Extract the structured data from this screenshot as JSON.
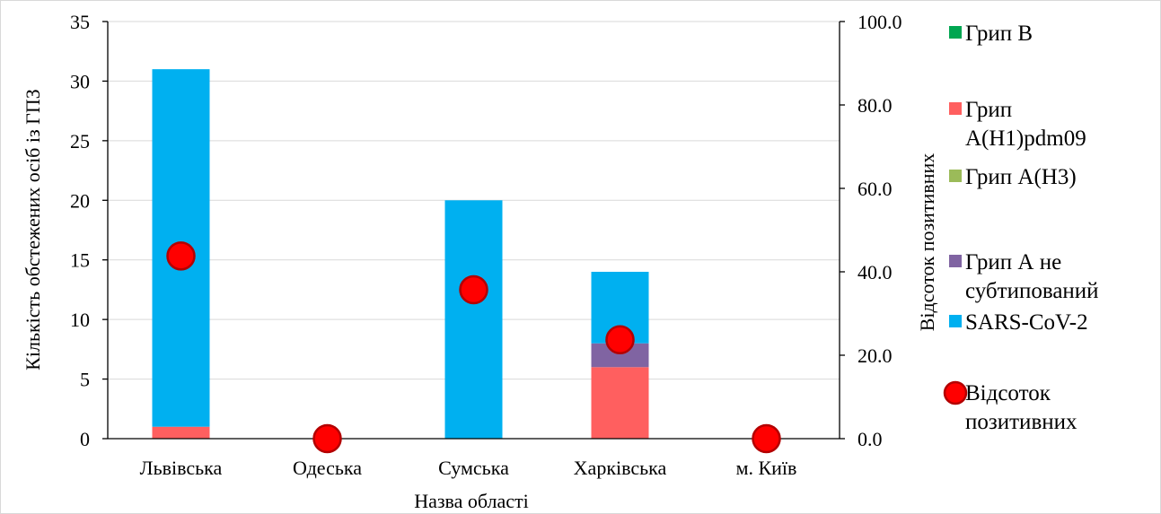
{
  "chart_data": {
    "type": "bar",
    "stacked": true,
    "categories": [
      "Львівська",
      "Одеська",
      "Сумська",
      "Харківська",
      "м. Київ"
    ],
    "series": [
      {
        "name": "Грип В",
        "color": "#00a651",
        "values": [
          0,
          0,
          0,
          0,
          0
        ]
      },
      {
        "name": "Грип A(H1)pdm09",
        "color": "#ff5f5f",
        "values": [
          1,
          0,
          0,
          6,
          0
        ]
      },
      {
        "name": "Грип A(H3)",
        "color": "#9bbb59",
        "values": [
          0,
          0,
          0,
          0,
          0
        ]
      },
      {
        "name": "Грип A не субтипований",
        "color": "#8064a2",
        "values": [
          0,
          0,
          0,
          2,
          0
        ]
      },
      {
        "name": "SARS-CoV-2",
        "color": "#00b0f0",
        "values": [
          30,
          0,
          20,
          6,
          0
        ]
      }
    ],
    "line_series": {
      "name": "Відсоток позитивних",
      "color": "#ff0000",
      "axis": "right",
      "values": [
        43.8,
        0.0,
        35.7,
        23.7,
        0.0
      ]
    },
    "xlabel": "Назва області",
    "ylabel": "Кількість обстежених осіб із ГПЗ",
    "y2label": "Відсоток позитивних",
    "ylim": [
      0,
      35
    ],
    "y2lim": [
      0,
      100
    ],
    "yticks": [
      "0",
      "5",
      "10",
      "15",
      "20",
      "25",
      "30",
      "35"
    ],
    "y2ticks": [
      "0.0",
      "20.0",
      "40.0",
      "60.0",
      "80.0",
      "100.0"
    ],
    "grid": true,
    "legend": {
      "position": "right",
      "items": [
        {
          "lines": [
            "Грип В"
          ],
          "color": "#00a651",
          "marker": "square"
        },
        {
          "lines": [
            "Грип",
            "A(H1)pdm09"
          ],
          "color": "#ff5f5f",
          "marker": "square"
        },
        {
          "lines": [
            "Грип A(H3)"
          ],
          "color": "#9bbb59",
          "marker": "square"
        },
        {
          "lines": [
            "Грип А не",
            "субтипований"
          ],
          "color": "#8064a2",
          "marker": "square"
        },
        {
          "lines": [
            "SARS-CoV-2"
          ],
          "color": "#00b0f0",
          "marker": "square"
        },
        {
          "lines": [
            "Відсоток",
            "позитивних"
          ],
          "color": "#ff0000",
          "marker": "circle"
        }
      ]
    }
  }
}
